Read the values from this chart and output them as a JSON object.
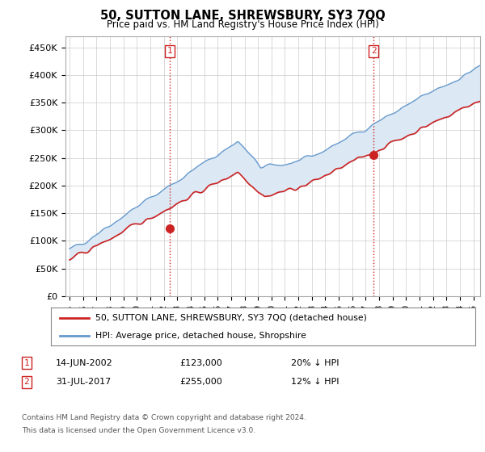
{
  "title": "50, SUTTON LANE, SHREWSBURY, SY3 7QQ",
  "subtitle": "Price paid vs. HM Land Registry's House Price Index (HPI)",
  "ylabel_ticks": [
    "£0",
    "£50K",
    "£100K",
    "£150K",
    "£200K",
    "£250K",
    "£300K",
    "£350K",
    "£400K",
    "£450K"
  ],
  "ytick_values": [
    0,
    50000,
    100000,
    150000,
    200000,
    250000,
    300000,
    350000,
    400000,
    450000
  ],
  "ylim": [
    0,
    470000
  ],
  "xlim_start": 1994.7,
  "xlim_end": 2025.5,
  "hpi_color": "#6699cc",
  "hpi_fill_color": "#dce9f5",
  "price_color": "#cc2222",
  "sale1_x": 2002.45,
  "sale1_y": 123000,
  "sale2_x": 2017.58,
  "sale2_y": 255000,
  "legend_line1": "50, SUTTON LANE, SHREWSBURY, SY3 7QQ (detached house)",
  "legend_line2": "HPI: Average price, detached house, Shropshire",
  "footnote1": "Contains HM Land Registry data © Crown copyright and database right 2024.",
  "footnote2": "This data is licensed under the Open Government Licence v3.0.",
  "background_color": "#ffffff",
  "grid_color": "#cccccc"
}
